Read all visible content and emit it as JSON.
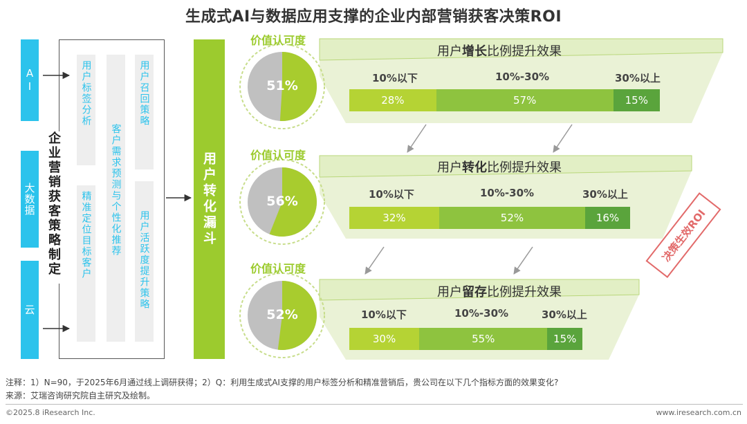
{
  "title": "生成式AI与数据应用支撑的企业内部营销获客决策ROI",
  "sources": [
    "AI",
    "大数据",
    "云"
  ],
  "strategy_heading": "企业营销获客策略制定",
  "strategies": {
    "col1": [
      "用户标签分析",
      "精准定位目标客户"
    ],
    "col2": "客户需求预测与个性化推荐",
    "col3": [
      "用户召回策略",
      "用户活跃度提升策略"
    ]
  },
  "funnel_label": "用户转化漏斗",
  "value_label": "价值认可度",
  "rows": [
    {
      "pie": {
        "percent_label": "51%",
        "value": 51
      },
      "header": {
        "prefix": "用户",
        "bold": "增长",
        "suffix": "比例提升效果"
      },
      "levels": [
        "10%以下",
        "10%-30%",
        "30%以上"
      ],
      "segments": [
        {
          "label": "28%",
          "value": 28
        },
        {
          "label": "57%",
          "value": 57
        },
        {
          "label": "15%",
          "value": 15
        }
      ]
    },
    {
      "pie": {
        "percent_label": "56%",
        "value": 56
      },
      "header": {
        "prefix": "用户",
        "bold": "转化",
        "suffix": "比例提升效果"
      },
      "levels": [
        "10%以下",
        "10%-30%",
        "30%以上"
      ],
      "segments": [
        {
          "label": "32%",
          "value": 32
        },
        {
          "label": "52%",
          "value": 52
        },
        {
          "label": "16%",
          "value": 16
        }
      ]
    },
    {
      "pie": {
        "percent_label": "52%",
        "value": 52
      },
      "header": {
        "prefix": "用户",
        "bold": "留存",
        "suffix": "比例提升效果"
      },
      "levels": [
        "10%以下",
        "10%-30%",
        "30%以上"
      ],
      "segments": [
        {
          "label": "30%",
          "value": 30
        },
        {
          "label": "55%",
          "value": 55
        },
        {
          "label": "15%",
          "value": 15
        }
      ]
    }
  ],
  "stamp": "决策生效ROI",
  "colors": {
    "source_blue": "#2cc3ec",
    "green_accent": "#9ccb2e",
    "pie_green": "#a8cc2e",
    "pie_grey": "#c0c0c0",
    "segment_light": "#b5d334",
    "segment_mid": "#8ec33f",
    "segment_dark": "#5aa43c",
    "stamp_red": "#e26a6a"
  },
  "footer": {
    "note": "注释：1）N=90，于2025年6月通过线上调研获得；2）Q：利用生成式AI支撑的用户标签分析和精准营销后，贵公司在以下几个指标方面的效果变化?",
    "source": "来源：艾瑞咨询研究院自主研究及绘制。",
    "copyright": "©2025.8 iResearch Inc.",
    "website": "www.iresearch.com.cn"
  }
}
